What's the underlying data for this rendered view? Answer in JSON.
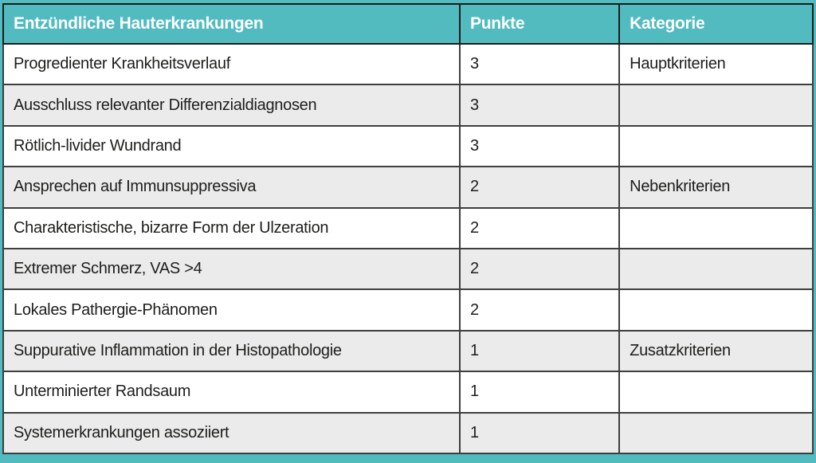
{
  "table": {
    "columns": [
      {
        "label": "Entzündliche Hauterkrankungen"
      },
      {
        "label": "Punkte"
      },
      {
        "label": "Kategorie"
      }
    ],
    "rows": [
      {
        "criterion": "Progredienter Krankheitsverlauf",
        "points": "3",
        "category": "Hauptkriterien"
      },
      {
        "criterion": "Ausschluss relevanter Differenzialdiagnosen",
        "points": "3",
        "category": ""
      },
      {
        "criterion": "Rötlich-livider Wundrand",
        "points": "3",
        "category": ""
      },
      {
        "criterion": "Ansprechen auf Immunsuppressiva",
        "points": "2",
        "category": "Nebenkriterien"
      },
      {
        "criterion": "Charakteristische, bizarre Form der Ulzeration",
        "points": "2",
        "category": ""
      },
      {
        "criterion": "Extremer Schmerz, VAS >4",
        "points": "2",
        "category": ""
      },
      {
        "criterion": "Lokales Pathergie-Phänomen",
        "points": "2",
        "category": ""
      },
      {
        "criterion": "Suppurative Inflammation in der Histopathologie",
        "points": "1",
        "category": "Zusatzkriterien"
      },
      {
        "criterion": "Unterminierter Randsaum",
        "points": "1",
        "category": ""
      },
      {
        "criterion": "Systemerkrankungen assoziiert",
        "points": "1",
        "category": ""
      }
    ]
  },
  "colors": {
    "accent_teal": "#52bbc0",
    "row_alternate": "#ebebeb",
    "row_main": "#ffffff",
    "border_inner": "#3e3e3e",
    "border_outer": "#1c1c1c",
    "body_text": "#1d1d1b",
    "header_text": "#ffffff"
  }
}
